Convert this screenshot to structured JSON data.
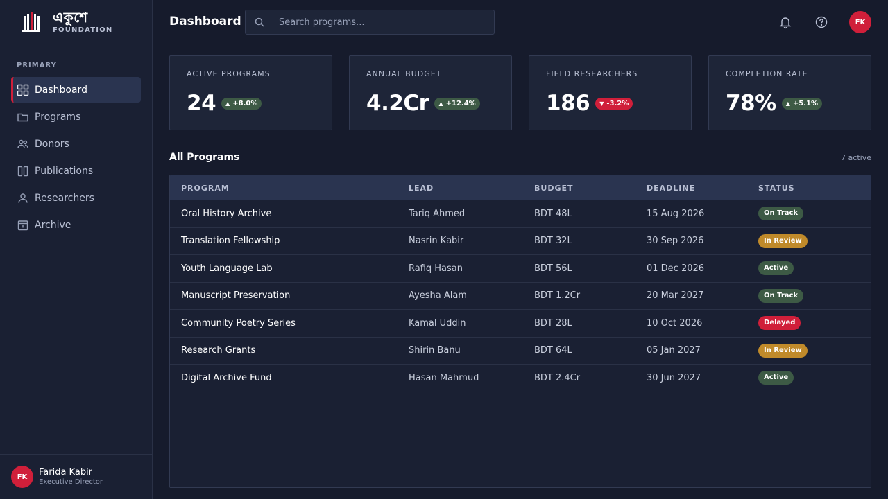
{
  "brand": {
    "name": "একুশে",
    "subtitle": "FOUNDATION",
    "accent": "#d01f3a"
  },
  "sidebar": {
    "section_label": "PRIMARY",
    "items": [
      {
        "label": "Dashboard",
        "icon": "grid-icon",
        "active": true
      },
      {
        "label": "Programs",
        "icon": "folder-icon",
        "active": false
      },
      {
        "label": "Donors",
        "icon": "users-icon",
        "active": false
      },
      {
        "label": "Publications",
        "icon": "book-icon",
        "active": false
      },
      {
        "label": "Researchers",
        "icon": "user-icon",
        "active": false
      },
      {
        "label": "Archive",
        "icon": "archive-icon",
        "active": false
      }
    ],
    "user": {
      "initials": "FK",
      "name": "Farida Kabir",
      "role": "Executive Director"
    }
  },
  "header": {
    "title": "Dashboard",
    "search_placeholder": "Search programs...",
    "avatar_initials": "FK"
  },
  "stats": [
    {
      "label": "ACTIVE PROGRAMS",
      "value": "24",
      "delta": "+8.0%",
      "direction": "up"
    },
    {
      "label": "ANNUAL BUDGET",
      "value": "4.2Cr",
      "delta": "+12.4%",
      "direction": "up"
    },
    {
      "label": "FIELD RESEARCHERS",
      "value": "186",
      "delta": "-3.2%",
      "direction": "down"
    },
    {
      "label": "COMPLETION RATE",
      "value": "78%",
      "delta": "+5.1%",
      "direction": "up"
    }
  ],
  "programs": {
    "title": "All Programs",
    "count_label": "7 active",
    "columns": [
      "PROGRAM",
      "LEAD",
      "BUDGET",
      "DEADLINE",
      "STATUS"
    ],
    "rows": [
      {
        "program": "Oral History Archive",
        "lead": "Tariq Ahmed",
        "budget": "BDT 48L",
        "deadline": "15 Aug 2026",
        "status": "On Track"
      },
      {
        "program": "Translation Fellowship",
        "lead": "Nasrin Kabir",
        "budget": "BDT 32L",
        "deadline": "30 Sep 2026",
        "status": "In Review"
      },
      {
        "program": "Youth Language Lab",
        "lead": "Rafiq Hasan",
        "budget": "BDT 56L",
        "deadline": "01 Dec 2026",
        "status": "Active"
      },
      {
        "program": "Manuscript Preservation",
        "lead": "Ayesha Alam",
        "budget": "BDT 1.2Cr",
        "deadline": "20 Mar 2027",
        "status": "On Track"
      },
      {
        "program": "Community Poetry Series",
        "lead": "Kamal Uddin",
        "budget": "BDT 28L",
        "deadline": "10 Oct 2026",
        "status": "Delayed"
      },
      {
        "program": "Research Grants",
        "lead": "Shirin Banu",
        "budget": "BDT 64L",
        "deadline": "05 Jan 2027",
        "status": "In Review"
      },
      {
        "program": "Digital Archive Fund",
        "lead": "Hasan Mahmud",
        "budget": "BDT 2.4Cr",
        "deadline": "30 Jun 2027",
        "status": "Active"
      }
    ],
    "status_colors": {
      "On Track": "#3d5a45",
      "In Review": "#c08a2a",
      "Active": "#3d5a45",
      "Delayed": "#d01f3a"
    }
  }
}
